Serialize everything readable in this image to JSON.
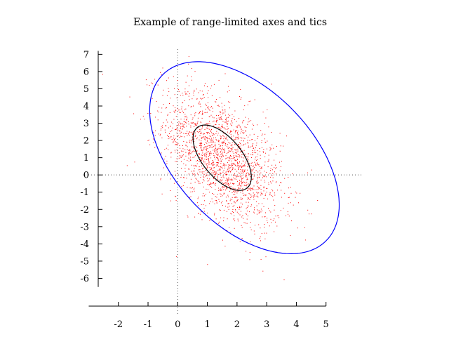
{
  "chart_data": {
    "type": "scatter",
    "title": "Example of range-limited axes and tics",
    "xlabel": "",
    "ylabel": "",
    "xlim": [
      -3.2,
      8.2
    ],
    "ylim": [
      -8.1,
      7.3
    ],
    "x_axis_range": [
      -3,
      5
    ],
    "y_axis_range": [
      -6.5,
      7.2
    ],
    "x_ticks": [
      -2,
      -1,
      0,
      1,
      2,
      3,
      4,
      5
    ],
    "y_ticks": [
      7,
      6,
      5,
      4,
      3,
      2,
      1,
      0,
      -1,
      -2,
      -3,
      -4,
      -5,
      -6
    ],
    "zero_axes": true,
    "grid": false,
    "legend": "none",
    "colors": {
      "points": "#ff0000",
      "outer_ellipse": "#0000ff",
      "inner_ellipse": "#000000",
      "axes": "#000000",
      "zero_axes": "#555555"
    },
    "distribution": {
      "count": 2000,
      "center": [
        1.5,
        1.0
      ],
      "sd_x": 1.0,
      "sd_y": 2.0,
      "correlation": -0.5
    },
    "ellipses": [
      {
        "name": "inner",
        "center": [
          1.5,
          1.0
        ],
        "semi_major": 2.0,
        "semi_minor": 0.75,
        "angle_deg": 110,
        "color": "#000000"
      },
      {
        "name": "outer",
        "center": [
          2.25,
          1.0
        ],
        "semi_major": 5.85,
        "semi_minor": 2.65,
        "angle_deg": 110,
        "color": "#0000ff"
      }
    ]
  }
}
